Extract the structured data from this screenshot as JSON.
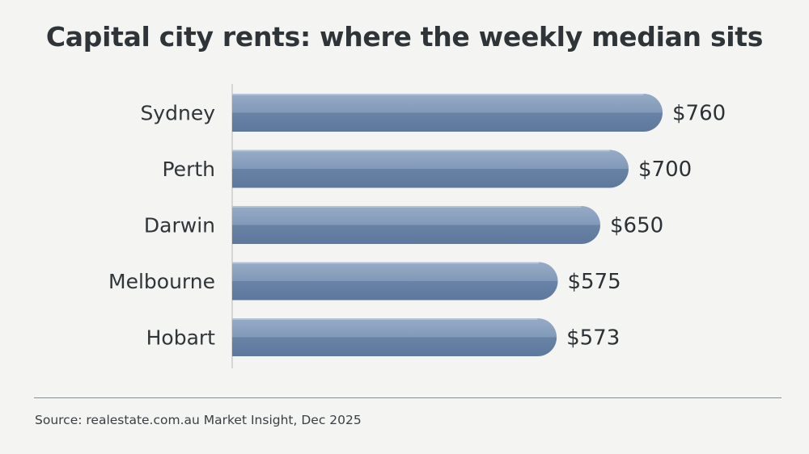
{
  "chart_data": {
    "type": "bar",
    "orientation": "horizontal",
    "title": "Capital city rents: where the weekly median sits",
    "categories": [
      "Sydney",
      "Perth",
      "Darwin",
      "Melbourne",
      "Hobart"
    ],
    "values": [
      760,
      700,
      650,
      575,
      573
    ],
    "value_labels": [
      "$760",
      "$700",
      "$650",
      "$575",
      "$573"
    ],
    "xlim": [
      0,
      820
    ],
    "grid": false,
    "legend": "none",
    "bar_color": "#7d95b6",
    "bar_color_dark": "#5f7a9f"
  },
  "source": "Source: realestate.com.au Market Insight, Dec 2025"
}
